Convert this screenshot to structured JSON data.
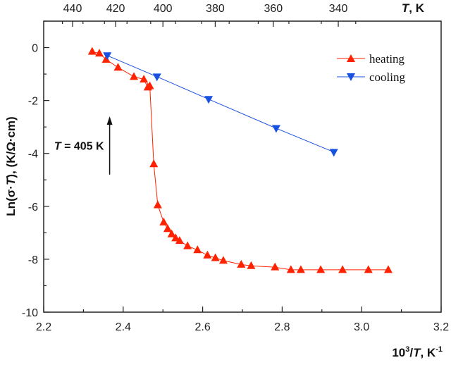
{
  "chart_data": {
    "type": "line",
    "xlabel": {
      "base": "10",
      "sup": "3",
      "rest": "/",
      "var": "T",
      "unit": ", K",
      "unit_sup": "-1"
    },
    "ylabel": {
      "pre": "Ln(σ·",
      "var": "T",
      "post": "), (K/Ω·cm)"
    },
    "top_axis_label": {
      "var": "T",
      "unit": ", K"
    },
    "xlim": [
      2.2,
      3.2
    ],
    "ylim": [
      -10,
      1
    ],
    "x_ticks": [
      "2.2",
      "2.4",
      "2.6",
      "2.8",
      "3.0",
      "3.2"
    ],
    "y_ticks": [
      "0",
      "-2",
      "-4",
      "-6",
      "-8",
      "-10"
    ],
    "top_ticks": [
      {
        "T": 440,
        "label": "440"
      },
      {
        "T": 420,
        "label": "420"
      },
      {
        "T": 400,
        "label": "400"
      },
      {
        "T": 380,
        "label": "380"
      },
      {
        "T": 360,
        "label": "360"
      },
      {
        "T": 340,
        "label": "340"
      }
    ],
    "series": [
      {
        "name": "heating",
        "color": "#ff2200",
        "marker": "triangle-up",
        "x": [
          2.322,
          2.34,
          2.357,
          2.387,
          2.427,
          2.452,
          2.462,
          2.467,
          2.477,
          2.487,
          2.502,
          2.512,
          2.522,
          2.532,
          2.542,
          2.562,
          2.587,
          2.612,
          2.632,
          2.652,
          2.697,
          2.722,
          2.782,
          2.822,
          2.847,
          2.897,
          2.952,
          3.017,
          3.067
        ],
        "y": [
          -0.15,
          -0.22,
          -0.45,
          -0.75,
          -1.1,
          -1.2,
          -1.5,
          -1.45,
          -4.4,
          -5.95,
          -6.6,
          -6.85,
          -7.05,
          -7.2,
          -7.3,
          -7.5,
          -7.65,
          -7.85,
          -7.95,
          -8.05,
          -8.2,
          -8.25,
          -8.3,
          -8.4,
          -8.4,
          -8.4,
          -8.4,
          -8.4,
          -8.4
        ]
      },
      {
        "name": "cooling",
        "color": "#1850e0",
        "marker": "triangle-down",
        "x": [
          2.36,
          2.485,
          2.615,
          2.785,
          2.93
        ],
        "y": [
          -0.3,
          -1.1,
          -1.95,
          -3.05,
          -3.95
        ]
      }
    ],
    "legend_position": "top-right",
    "annotation": {
      "var": "T",
      "text": " = 405 K",
      "x": 2.467,
      "y_from": -4.8,
      "y_to": -2.6
    },
    "grid": false
  }
}
